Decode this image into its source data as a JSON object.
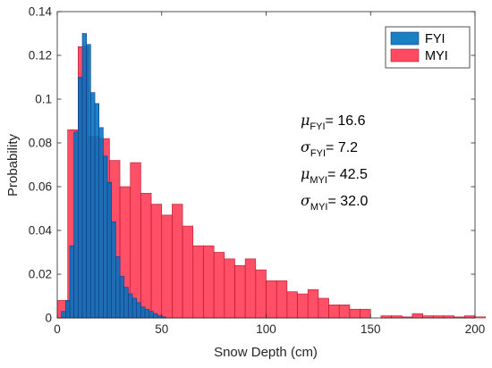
{
  "chart_data": {
    "type": "bar",
    "xlabel": "Snow Depth (cm)",
    "ylabel": "Probability",
    "xlim": [
      0,
      200
    ],
    "ylim": [
      0,
      0.14
    ],
    "x_ticks": [
      "0",
      "50",
      "100",
      "150",
      "200"
    ],
    "y_ticks": [
      "0",
      "0.02",
      "0.04",
      "0.06",
      "0.08",
      "0.1",
      "0.12",
      "0.14"
    ],
    "grid": false,
    "legend_position": "top-right",
    "series": [
      {
        "name": "FYI",
        "color": "#0072bd",
        "bin_width": 2,
        "bin_start": 2,
        "values": [
          0.003,
          0.008,
          0.033,
          0.085,
          0.11,
          0.13,
          0.125,
          0.103,
          0.098,
          0.087,
          0.074,
          0.062,
          0.044,
          0.028,
          0.019,
          0.014,
          0.011,
          0.009,
          0.007,
          0.005,
          0.004,
          0.003,
          0.002,
          0.001,
          0.0005
        ]
      },
      {
        "name": "MYI",
        "color": "#ff2a45",
        "bin_width": 5,
        "bin_start": 0,
        "values": [
          0.008,
          0.086,
          0.124,
          0.083,
          0.082,
          0.072,
          0.06,
          0.071,
          0.057,
          0.052,
          0.047,
          0.052,
          0.042,
          0.033,
          0.033,
          0.03,
          0.027,
          0.024,
          0.027,
          0.022,
          0.017,
          0.017,
          0.012,
          0.011,
          0.013,
          0.009,
          0.006,
          0.006,
          0.004,
          0.004,
          0.0,
          0.001,
          0.001,
          0.0005,
          0.002,
          0.001,
          0.001,
          0.001,
          0.0005,
          0.001,
          0.0005
        ]
      }
    ],
    "annotations": [
      {
        "symbol": "μ",
        "sub": "FYI",
        "value": "= 16.6"
      },
      {
        "symbol": "σ",
        "sub": "FYI",
        "value": "= 7.2"
      },
      {
        "symbol": "μ",
        "sub": "MYI",
        "value": "= 42.5"
      },
      {
        "symbol": "σ",
        "sub": "MYI",
        "value": "= 32.0"
      }
    ]
  }
}
